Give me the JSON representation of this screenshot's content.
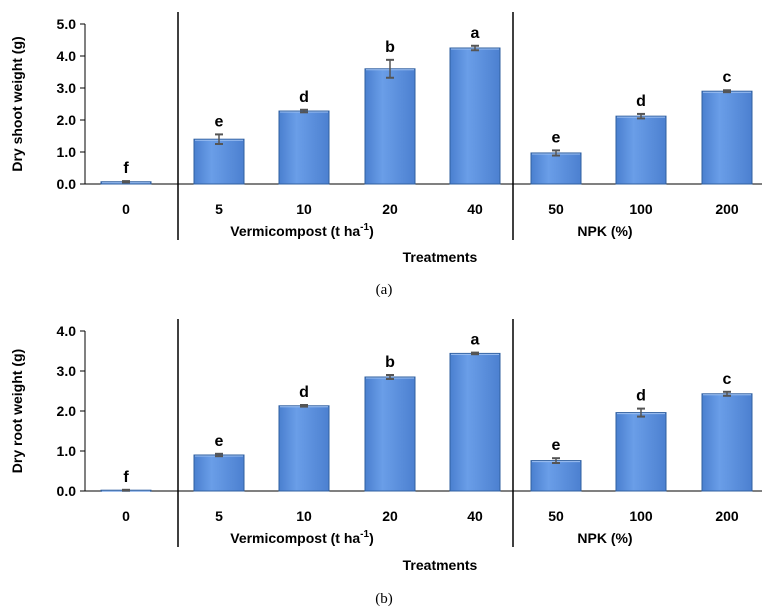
{
  "chart_data": [
    {
      "type": "bar",
      "caption": "(a)",
      "ylabel": "Dry  shoot weight (g)",
      "xlabel": "Treatments",
      "ylim": [
        0,
        5
      ],
      "yticks": [
        "0.0",
        "1.0",
        "2.0",
        "3.0",
        "4.0",
        "5.0"
      ],
      "categories": [
        "0",
        "5",
        "10",
        "20",
        "40",
        "50",
        "100",
        "200"
      ],
      "values": [
        0.07,
        1.4,
        2.28,
        3.6,
        4.25,
        0.97,
        2.12,
        2.9
      ],
      "errors": [
        0.02,
        0.15,
        0.04,
        0.28,
        0.07,
        0.08,
        0.07,
        0.03
      ],
      "letters": [
        "f",
        "e",
        "d",
        "b",
        "a",
        "e",
        "d",
        "c"
      ],
      "group_labels": [
        {
          "text": "Vermicompost (t ha",
          "sup": "-1",
          "suffix": ")"
        },
        {
          "text": "NPK (%)",
          "sup": "",
          "suffix": ""
        }
      ]
    },
    {
      "type": "bar",
      "caption": "(b)",
      "ylabel": "Dry  root weight (g)",
      "xlabel": "Treatments",
      "ylim": [
        0,
        4
      ],
      "yticks": [
        "0.0",
        "1.0",
        "2.0",
        "3.0",
        "4.0"
      ],
      "categories": [
        "0",
        "5",
        "10",
        "20",
        "40",
        "50",
        "100",
        "200"
      ],
      "values": [
        0.02,
        0.9,
        2.13,
        2.85,
        3.44,
        0.76,
        1.96,
        2.43
      ],
      "errors": [
        0.01,
        0.03,
        0.02,
        0.05,
        0.02,
        0.06,
        0.1,
        0.05
      ],
      "letters": [
        "f",
        "e",
        "d",
        "b",
        "a",
        "e",
        "d",
        "c"
      ],
      "group_labels": [
        {
          "text": "Vermicompost (t ha",
          "sup": "-1",
          "suffix": ")"
        },
        {
          "text": "NPK (%)",
          "sup": "",
          "suffix": ""
        }
      ]
    }
  ],
  "colors": {
    "bar_fill": "#5b8fdd",
    "bar_stroke": "#2f5f9f",
    "error_bar": "#555555",
    "axis": "#000000"
  }
}
